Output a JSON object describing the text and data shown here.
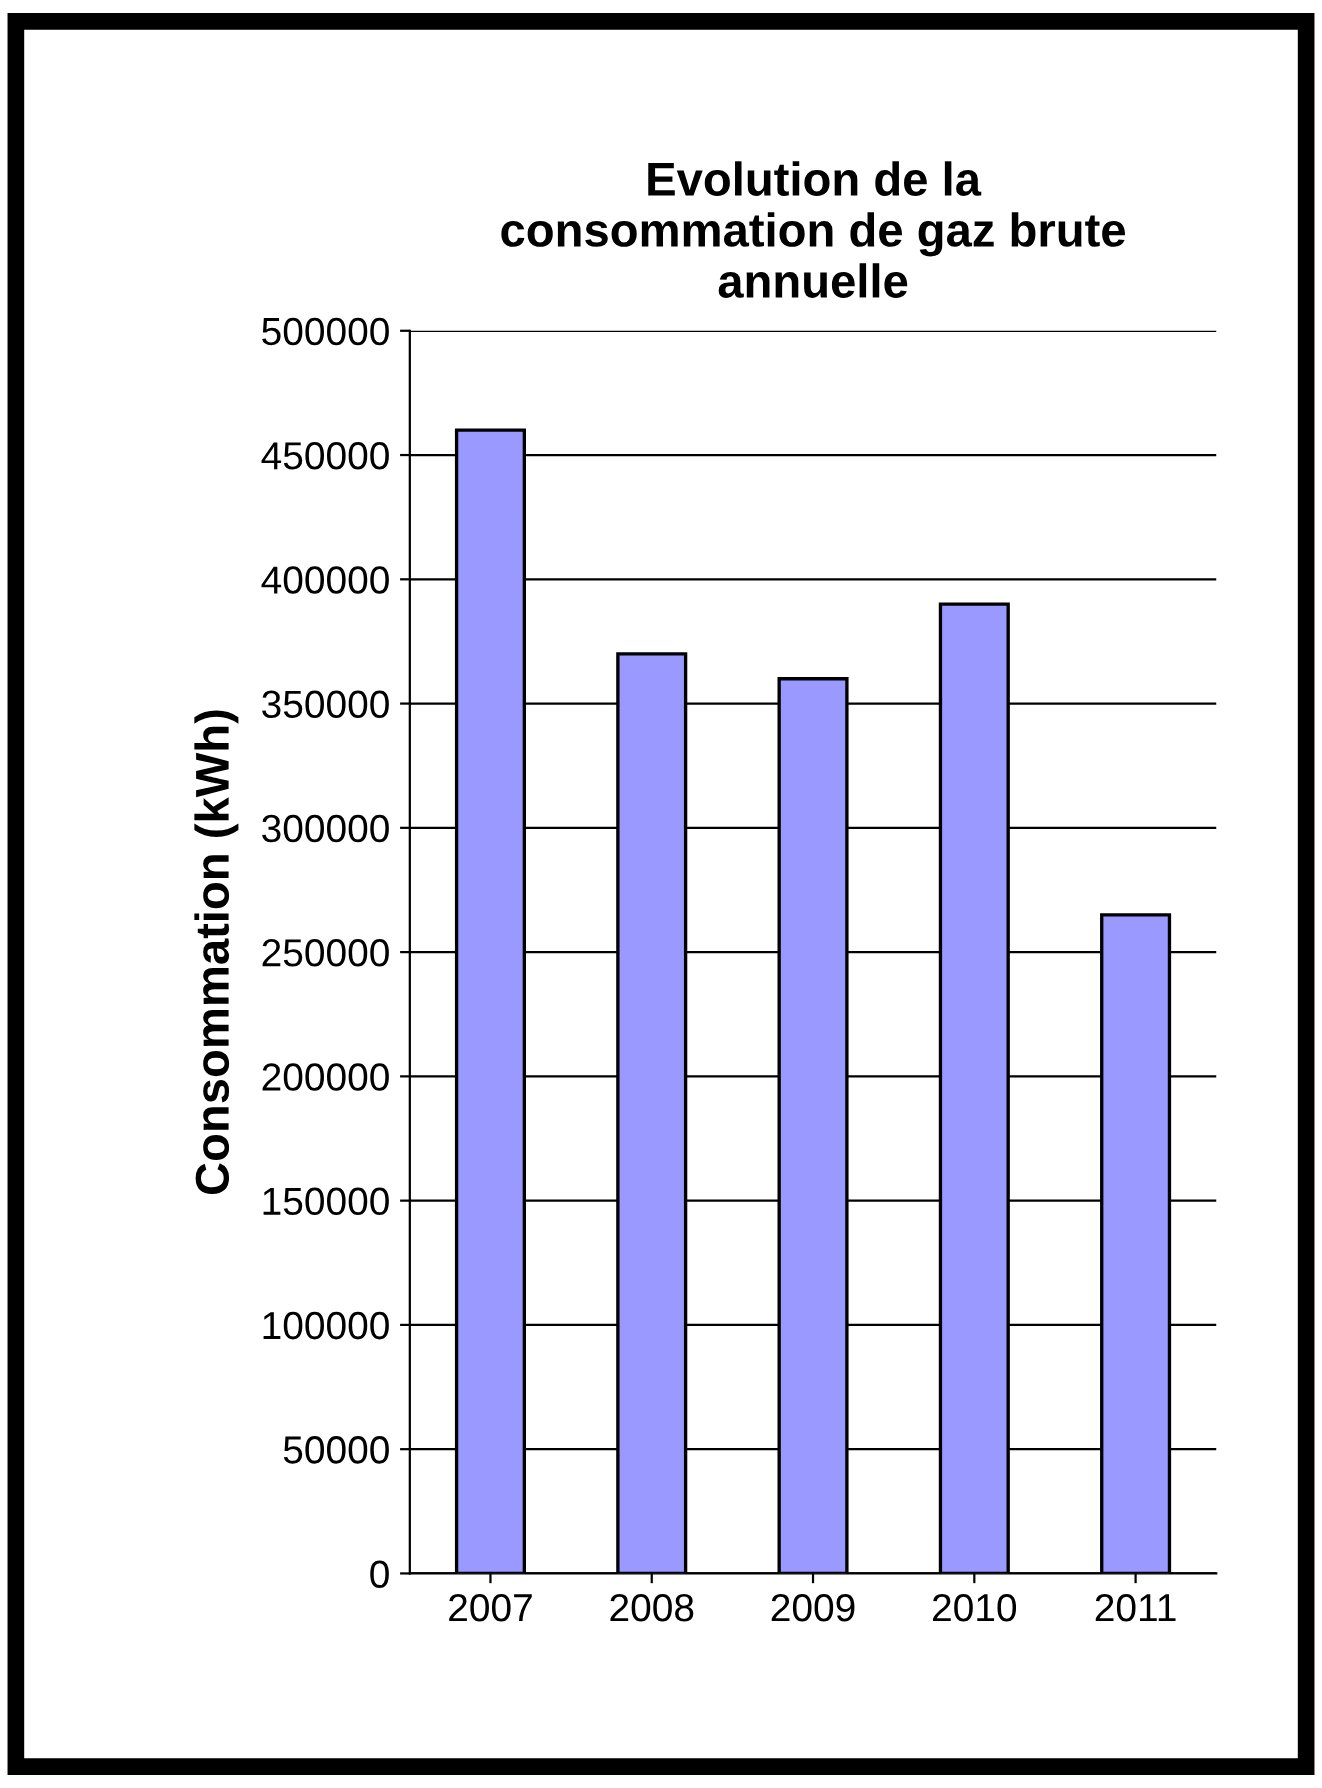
{
  "chart_data": {
    "type": "bar",
    "title": "Evolution de la\nconsommation de gaz brute\nannuelle",
    "ylabel": "Consommation (kWh)",
    "categories": [
      "2007",
      "2008",
      "2009",
      "2010",
      "2011"
    ],
    "series": [
      {
        "color": "#9999ff",
        "values": [
          460000,
          370000,
          360000,
          390000,
          265000
        ]
      }
    ],
    "ylim": [
      0,
      500000
    ],
    "yticks": [
      0,
      50000,
      100000,
      150000,
      200000,
      250000,
      300000,
      350000,
      400000,
      450000,
      500000
    ],
    "grid": "y",
    "legend": false
  }
}
